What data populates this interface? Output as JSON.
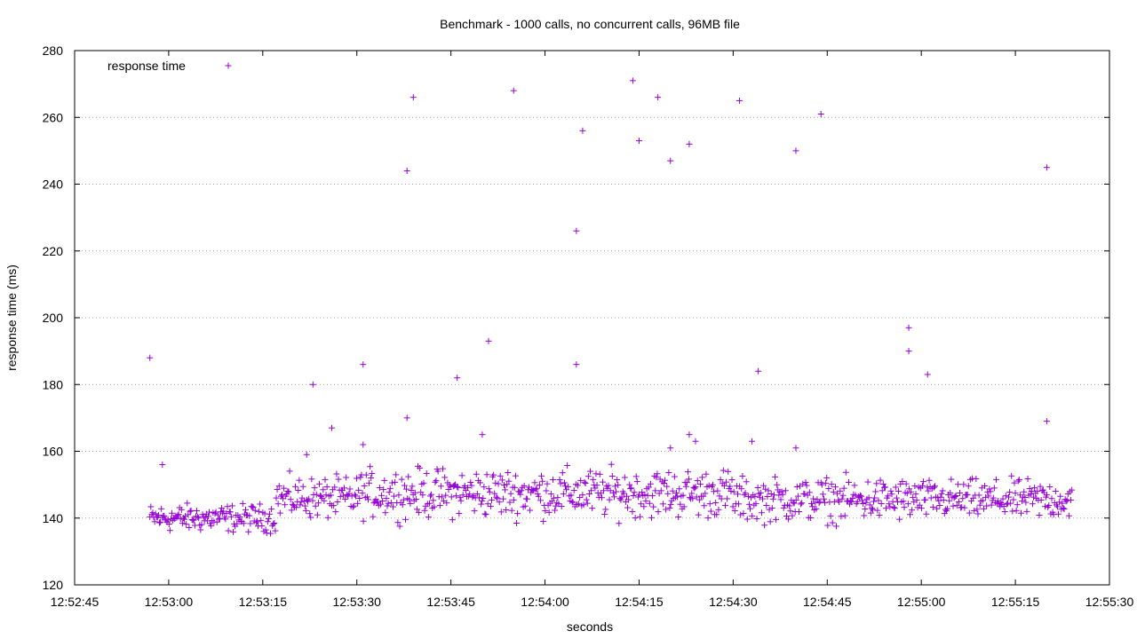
{
  "chart_data": {
    "type": "scatter",
    "title": "Benchmark - 1000 calls, no concurrent calls, 96MB file",
    "xlabel": "seconds",
    "ylabel": "response time (ms)",
    "x_format": "time hh:mm:ss",
    "xlim": [
      "12:52:45",
      "12:55:30"
    ],
    "ylim": [
      120,
      280
    ],
    "x_ticks": [
      "12:52:45",
      "12:53:00",
      "12:53:15",
      "12:53:30",
      "12:53:45",
      "12:54:00",
      "12:54:15",
      "12:54:30",
      "12:54:45",
      "12:55:00",
      "12:55:15",
      "12:55:30"
    ],
    "y_ticks": [
      120,
      140,
      160,
      180,
      200,
      220,
      240,
      260,
      280
    ],
    "grid": "horizontal dotted lines",
    "legend_position": "top-left",
    "marker": "plus",
    "color": "#9400d3",
    "series": [
      {
        "name": "response time",
        "points": [
          [
            "12:52:57",
            188
          ],
          [
            "12:52:59",
            156
          ],
          [
            "12:53:22",
            159
          ],
          [
            "12:53:23",
            180
          ],
          [
            "12:53:26",
            167
          ],
          [
            "12:53:31",
            186
          ],
          [
            "12:53:31",
            162
          ],
          [
            "12:53:38",
            170
          ],
          [
            "12:53:38",
            244
          ],
          [
            "12:53:39",
            266
          ],
          [
            "12:53:46",
            182
          ],
          [
            "12:53:50",
            165
          ],
          [
            "12:53:51",
            193
          ],
          [
            "12:53:55",
            268
          ],
          [
            "12:54:05",
            226
          ],
          [
            "12:54:05",
            186
          ],
          [
            "12:54:06",
            256
          ],
          [
            "12:54:14",
            271
          ],
          [
            "12:54:15",
            253
          ],
          [
            "12:54:18",
            266
          ],
          [
            "12:54:20",
            247
          ],
          [
            "12:54:20",
            161
          ],
          [
            "12:54:23",
            252
          ],
          [
            "12:54:23",
            165
          ],
          [
            "12:54:24",
            163
          ],
          [
            "12:54:31",
            265
          ],
          [
            "12:54:33",
            163
          ],
          [
            "12:54:34",
            184
          ],
          [
            "12:54:40",
            250
          ],
          [
            "12:54:40",
            161
          ],
          [
            "12:54:44",
            261
          ],
          [
            "12:54:58",
            197
          ],
          [
            "12:54:58",
            190
          ],
          [
            "12:55:01",
            183
          ],
          [
            "12:55:20",
            245
          ],
          [
            "12:55:20",
            169
          ]
        ],
        "cluster": {
          "time_range": [
            "12:52:57",
            "12:55:24"
          ],
          "typical_band_by_time": [
            {
              "from": "12:52:57",
              "to": "12:53:17",
              "low": 134,
              "high": 146
            },
            {
              "from": "12:53:17",
              "to": "12:53:30",
              "low": 137,
              "high": 155
            },
            {
              "from": "12:53:30",
              "to": "12:54:30",
              "low": 137,
              "high": 158
            },
            {
              "from": "12:54:30",
              "to": "12:55:00",
              "low": 136,
              "high": 155
            },
            {
              "from": "12:55:00",
              "to": "12:55:24",
              "low": 137,
              "high": 154
            }
          ],
          "approx_points": 964
        }
      }
    ]
  }
}
